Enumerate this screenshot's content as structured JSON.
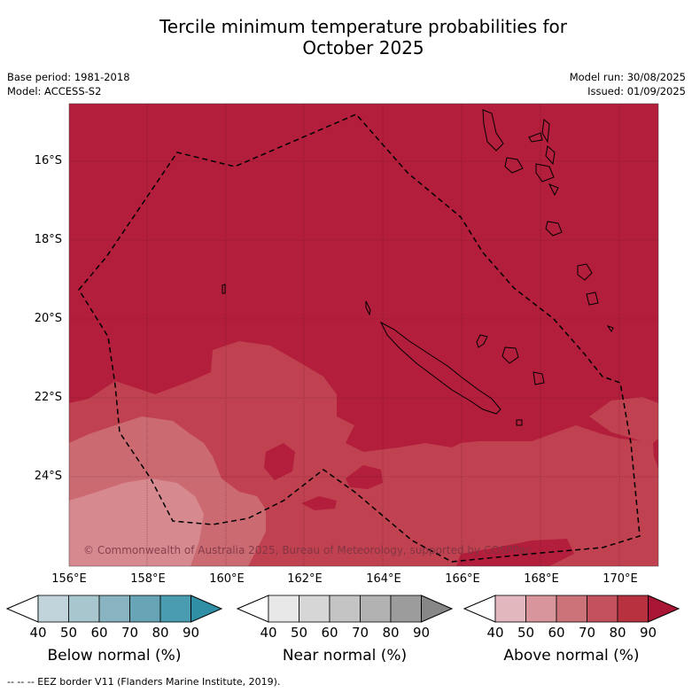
{
  "title_line1": "Tercile minimum temperature probabilities for",
  "title_line2": "October 2025",
  "base_period": "Base period: 1981-2018",
  "model": "Model: ACCESS-S2",
  "model_run": "Model run: 30/08/2025",
  "issued": "Issued: 01/09/2025",
  "map": {
    "lat_ticks": [
      "16°S",
      "18°S",
      "20°S",
      "22°S",
      "24°S"
    ],
    "lon_ticks": [
      "156°E",
      "158°E",
      "160°E",
      "162°E",
      "164°E",
      "166°E",
      "168°E",
      "170°E"
    ],
    "copyright": "© Commonwealth of Australia 2025, Bureau of Meteorology, supported by COSPPac",
    "colors": {
      "above_90": "#b21e3b",
      "above_80": "#c0414f",
      "above_70": "#cc6a72",
      "land": "none",
      "eez": "#000000"
    }
  },
  "legends": [
    {
      "title": "Below normal (%)",
      "ticks": [
        "40",
        "50",
        "60",
        "70",
        "80",
        "90"
      ],
      "colors": [
        "#ffffff",
        "#c1d4dc",
        "#a7c6cd",
        "#88b3c0",
        "#66a4b6",
        "#4a9db0",
        "#2e8fa5"
      ]
    },
    {
      "title": "Near normal (%)",
      "ticks": [
        "40",
        "50",
        "60",
        "70",
        "80",
        "90"
      ],
      "colors": [
        "#ffffff",
        "#e8e8e8",
        "#d6d6d6",
        "#c4c4c4",
        "#b2b2b2",
        "#9c9c9c",
        "#878787"
      ]
    },
    {
      "title": "Above normal (%)",
      "ticks": [
        "40",
        "50",
        "60",
        "70",
        "80",
        "90"
      ],
      "colors": [
        "#ffffff",
        "#e2b7be",
        "#d8959c",
        "#cc7379",
        "#c4525e",
        "#b7313f",
        "#a81535"
      ]
    }
  ],
  "footer": "--  --  -- EEZ border V11 (Flanders Marine Institute, 2019)."
}
